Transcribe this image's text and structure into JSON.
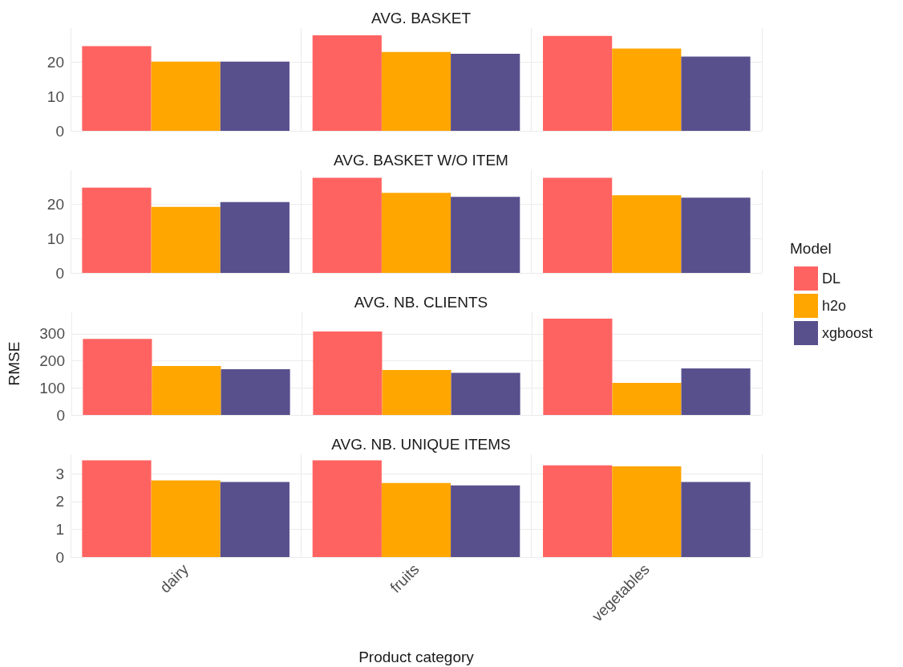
{
  "chart_data": [
    {
      "type": "bar",
      "title": "AVG. BASKET",
      "categories": [
        null,
        null,
        null
      ],
      "series": [
        {
          "color": "#ff6361",
          "values": [
            24.7,
            27.9,
            27.7
          ]
        },
        {
          "color": "#ffa600",
          "values": [
            20.2,
            23.0,
            24.0
          ]
        },
        {
          "color": "#58508d",
          "values": [
            20.2,
            22.5,
            21.7
          ]
        }
      ],
      "ylim": [
        0,
        30
      ],
      "yticks": [
        0,
        10,
        20
      ],
      "grid": true,
      "tick_labels": "y"
    },
    {
      "type": "bar",
      "title": "AVG. BASKET W/O ITEM",
      "categories": [
        null,
        null,
        null
      ],
      "series": [
        {
          "name": "DL",
          "color": "#ff6361",
          "values": [
            24.9,
            27.8,
            27.8
          ]
        },
        {
          "name": "h2o",
          "color": "#ffa600",
          "values": [
            19.3,
            23.4,
            22.7
          ]
        },
        {
          "name": "xgboost",
          "color": "#58508d",
          "values": [
            20.7,
            22.2,
            22.0
          ]
        }
      ],
      "ylim": [
        0,
        30
      ],
      "yticks": [
        0,
        10,
        20
      ],
      "grid": true,
      "tick_labels": "y",
      "legend": "right",
      "legend_title": "Model"
    },
    {
      "type": "bar",
      "title": "AVG. NB. CLIENTS",
      "ylabel": "RMSE",
      "categories": [
        null,
        null,
        null
      ],
      "series": [
        {
          "color": "#ff6361",
          "values": [
            281,
            309,
            356
          ]
        },
        {
          "color": "#ffa600",
          "values": [
            181,
            166,
            119
          ]
        },
        {
          "color": "#58508d",
          "values": [
            169,
            156,
            172
          ]
        }
      ],
      "ylim": [
        0,
        380
      ],
      "yticks": [
        0,
        100,
        200,
        300
      ],
      "grid": true,
      "tick_labels": "y"
    },
    {
      "type": "bar",
      "title": "AVG. NB. UNIQUE ITEMS",
      "xlabel": "Product category",
      "categories": [
        "dairy",
        "fruits",
        "vegetables"
      ],
      "series": [
        {
          "color": "#ff6361",
          "values": [
            3.48,
            3.48,
            3.3
          ]
        },
        {
          "color": "#ffa600",
          "values": [
            2.76,
            2.67,
            3.27
          ]
        },
        {
          "color": "#58508d",
          "values": [
            2.7,
            2.58,
            2.7
          ]
        }
      ],
      "ylim": [
        0,
        3.7
      ],
      "yticks": [
        0,
        1,
        2,
        3
      ],
      "grid": true
    }
  ]
}
